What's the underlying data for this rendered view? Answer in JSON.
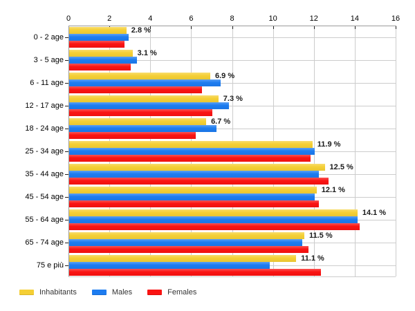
{
  "chart_data": {
    "type": "bar",
    "orientation": "horizontal",
    "title": "",
    "xlabel": "",
    "ylabel": "",
    "xlim": [
      0,
      16
    ],
    "x_ticks": [
      0,
      2,
      4,
      6,
      8,
      10,
      12,
      14,
      16
    ],
    "grid": true,
    "legend_position": "bottom",
    "categories": [
      "0 - 2 age",
      "3 - 5 age",
      "6 - 11 age",
      "12 - 17 age",
      "18 - 24 age",
      "25 - 34 age",
      "35 - 44 age",
      "45 - 54 age",
      "55 - 64 age",
      "65 - 74 age",
      "75 e più"
    ],
    "series": [
      {
        "name": "Inhabitants",
        "color": "#F5CF35",
        "values": [
          2.8,
          3.1,
          6.9,
          7.3,
          6.7,
          11.9,
          12.5,
          12.1,
          14.1,
          11.5,
          11.1
        ]
      },
      {
        "name": "Males",
        "color": "#1D7CF0",
        "values": [
          2.9,
          3.3,
          7.4,
          7.8,
          7.2,
          12.0,
          12.2,
          12.0,
          14.1,
          11.4,
          9.8
        ]
      },
      {
        "name": "Females",
        "color": "#FA1312",
        "values": [
          2.7,
          3.0,
          6.5,
          7.0,
          6.2,
          11.8,
          12.7,
          12.2,
          14.2,
          11.7,
          12.3
        ]
      }
    ],
    "value_labels": [
      "2.8 %",
      "3.1 %",
      "6.9 %",
      "7.3 %",
      "6.7 %",
      "11.9 %",
      "12.5 %",
      "12.1 %",
      "14.1 %",
      "11.5 %",
      "11.1 %"
    ],
    "value_labels_series": "Inhabitants"
  },
  "legend": {
    "items": [
      {
        "label": "Inhabitants",
        "color": "#F5CF35"
      },
      {
        "label": "Males",
        "color": "#1D7CF0"
      },
      {
        "label": "Females",
        "color": "#FA1312"
      }
    ]
  },
  "colors": {
    "background": "#ffffff",
    "grid": "#cccccc",
    "axis": "#9a9a9a",
    "tick": "#1a1a1a",
    "tick_text": "#000000",
    "category_text": "#000000",
    "value_label_text": "#1a1a1a",
    "legend_text": "#333333"
  }
}
